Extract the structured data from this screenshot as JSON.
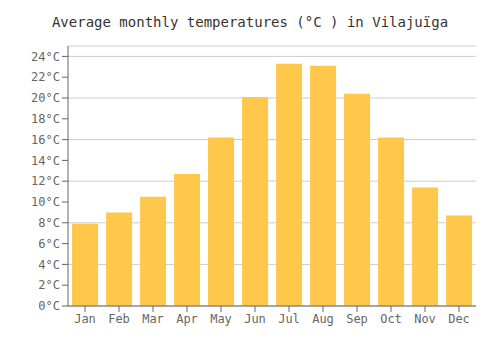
{
  "chart_data": {
    "type": "bar",
    "title": "Average monthly temperatures (°C ) in Vilajuïga",
    "categories": [
      "Jan",
      "Feb",
      "Mar",
      "Apr",
      "May",
      "Jun",
      "Jul",
      "Aug",
      "Sep",
      "Oct",
      "Nov",
      "Dec"
    ],
    "values": [
      7.9,
      9.0,
      10.5,
      12.7,
      16.2,
      20.1,
      23.3,
      23.1,
      20.4,
      16.2,
      11.4,
      8.7
    ],
    "color": "#FFC84A",
    "ylim": [
      0,
      25
    ],
    "yticks": [
      {
        "value": 0,
        "label": "0°C"
      },
      {
        "value": 2,
        "label": "2°C"
      },
      {
        "value": 4,
        "label": "4°C"
      },
      {
        "value": 6,
        "label": "6°C"
      },
      {
        "value": 8,
        "label": "8°C"
      },
      {
        "value": 10,
        "label": "10°C"
      },
      {
        "value": 12,
        "label": "12°C"
      },
      {
        "value": 14,
        "label": "14°C"
      },
      {
        "value": 16,
        "label": "16°C"
      },
      {
        "value": 18,
        "label": "18°C"
      },
      {
        "value": 20,
        "label": "20°C"
      },
      {
        "value": 22,
        "label": "22°C"
      },
      {
        "value": 24,
        "label": "24°C"
      }
    ],
    "grid": true
  }
}
